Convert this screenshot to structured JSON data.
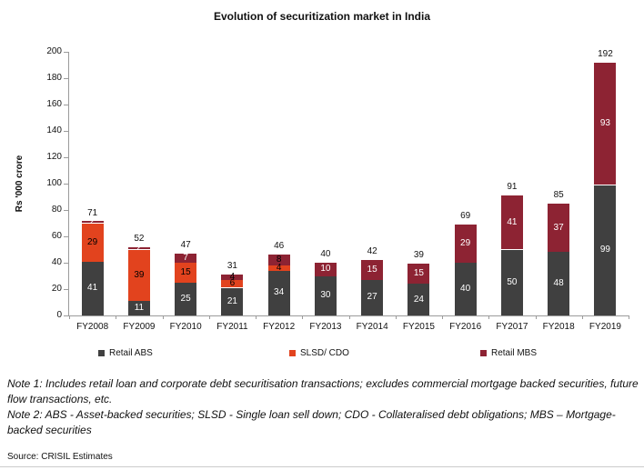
{
  "chart_data": {
    "type": "bar",
    "stacked": true,
    "title": "Evolution of securitization market in India",
    "ylabel": "Rs '000 crore",
    "ylim": [
      0,
      200
    ],
    "ytick_step": 20,
    "grid": false,
    "legend_position": "bottom",
    "categories": [
      "FY2008",
      "FY2009",
      "FY2010",
      "FY2011",
      "FY2012",
      "FY2013",
      "FY2014",
      "FY2015",
      "FY2016",
      "FY2017",
      "FY2018",
      "FY2019"
    ],
    "series": [
      {
        "name": "Retail ABS",
        "color": "#404040",
        "label_color_default": "#ffffff",
        "values": [
          41,
          11,
          25,
          21,
          34,
          30,
          27,
          24,
          40,
          50,
          48,
          99
        ]
      },
      {
        "name": "SLSD/ CDO",
        "color": "#e2431e",
        "label_color_default": "#000000",
        "values": [
          29,
          39,
          15,
          6,
          4,
          0,
          0,
          0,
          0,
          0,
          0,
          0
        ]
      },
      {
        "name": "Retail MBS",
        "color": "#8d2333",
        "label_color_default": "#ffffff",
        "values": [
          2,
          2,
          7,
          4,
          8,
          10,
          15,
          15,
          29,
          41,
          37,
          93
        ],
        "label_colors": [
          "#ffffff",
          "#ffffff",
          "#ffffff",
          "#000000",
          "#000000",
          "#ffffff",
          "#ffffff",
          "#ffffff",
          "#ffffff",
          "#ffffff",
          "#ffffff",
          "#ffffff"
        ]
      }
    ],
    "totals": [
      71,
      52,
      47,
      31,
      46,
      40,
      42,
      39,
      69,
      91,
      85,
      192
    ]
  },
  "notes": {
    "note1": "Note 1: Includes retail loan and corporate debt securitisation transactions; excludes commercial mortgage backed securities, future flow transactions, etc.",
    "note2": "Note 2: ABS - Asset-backed securities; SLSD - Single loan sell down; CDO - Collateralised debt obligations; MBS – Mortgage-backed securities",
    "source": "Source: CRISIL Estimates"
  }
}
